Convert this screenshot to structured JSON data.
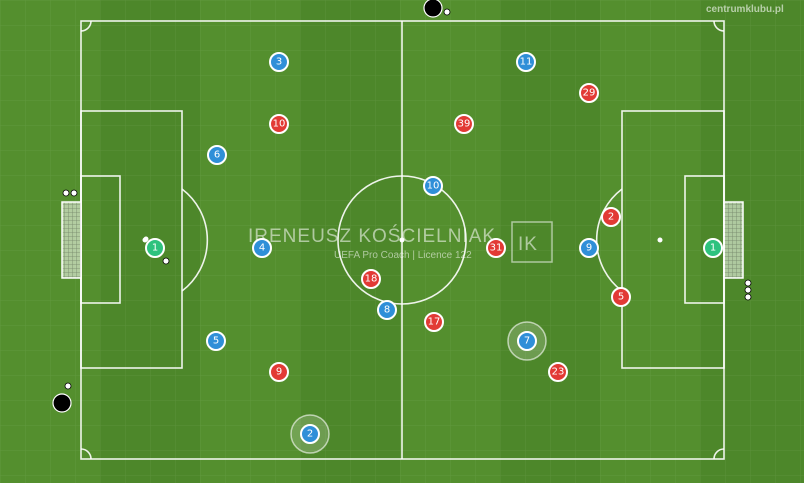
{
  "site_label": "centrumklubu.pl",
  "watermark": {
    "name": "IRENEUSZ KOŚCIELNIAK",
    "subtitle": "UEFA Pro Coach   |   Licence 122",
    "logo_text": "IK"
  },
  "colors": {
    "grass_dark": "#4b8429",
    "grass_light": "#5b9a33",
    "blue_team": "#2f8fd8",
    "red_team": "#e23a35",
    "goalkeeper": "#2ec27e"
  },
  "blue_players": [
    "3",
    "11",
    "6",
    "10",
    "4",
    "9",
    "8",
    "5",
    "7",
    "2"
  ],
  "red_players": [
    "29",
    "10",
    "39",
    "2",
    "31",
    "18",
    "5",
    "17",
    "9",
    "23"
  ],
  "goalkeepers": [
    "1",
    "1"
  ],
  "balls": [
    "ball-top",
    "ball-left",
    "ball-mid-left",
    "ball-right-goal"
  ]
}
